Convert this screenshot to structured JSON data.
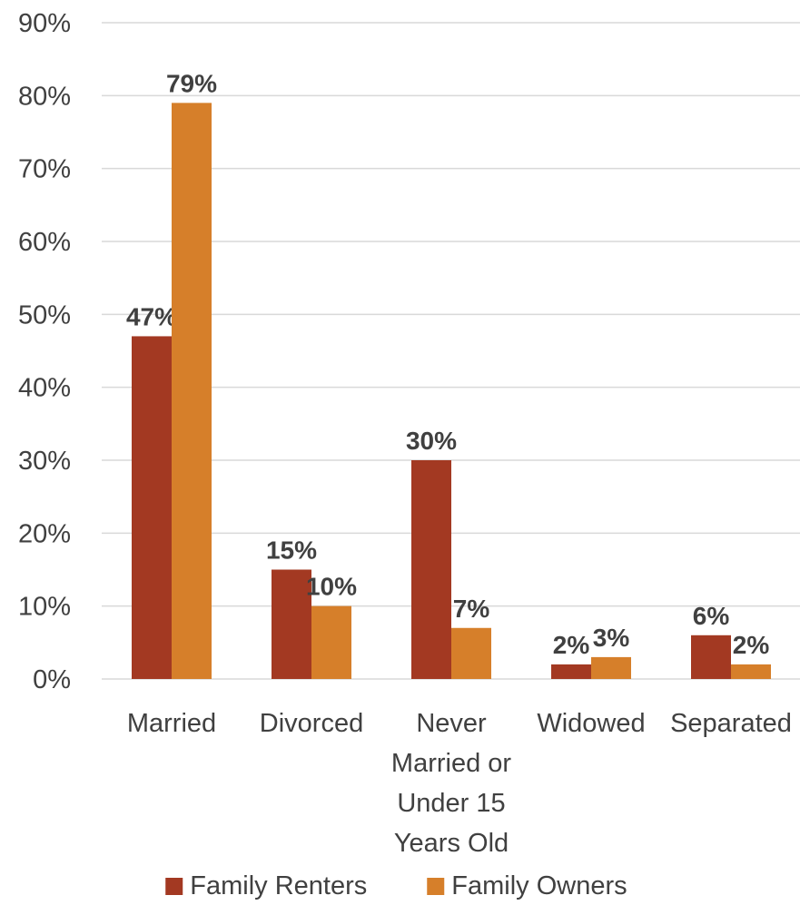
{
  "chart_data": {
    "type": "bar",
    "title": "",
    "xlabel": "",
    "ylabel": "",
    "categories": [
      [
        "Married"
      ],
      [
        "Divorced"
      ],
      [
        "Never",
        "Married or",
        "Under 15",
        "Years Old"
      ],
      [
        "Widowed"
      ],
      [
        "Separated"
      ]
    ],
    "series": [
      {
        "name": "Family Renters",
        "color": "#a33922",
        "values": [
          47,
          15,
          30,
          2,
          6
        ],
        "labels": [
          "47%",
          "15%",
          "30%",
          "2%",
          "6%"
        ]
      },
      {
        "name": "Family Owners",
        "color": "#d67f2a",
        "values": [
          79,
          10,
          7,
          3,
          2
        ],
        "labels": [
          "79%",
          "10%",
          "7%",
          "3%",
          "2%"
        ]
      }
    ],
    "ylim": [
      0,
      90
    ],
    "yticks": [
      0,
      10,
      20,
      30,
      40,
      50,
      60,
      70,
      80,
      90
    ],
    "ytick_labels": [
      "0%",
      "10%",
      "20%",
      "30%",
      "40%",
      "50%",
      "60%",
      "70%",
      "80%",
      "90%"
    ],
    "grid": true,
    "legend_position": "bottom"
  }
}
